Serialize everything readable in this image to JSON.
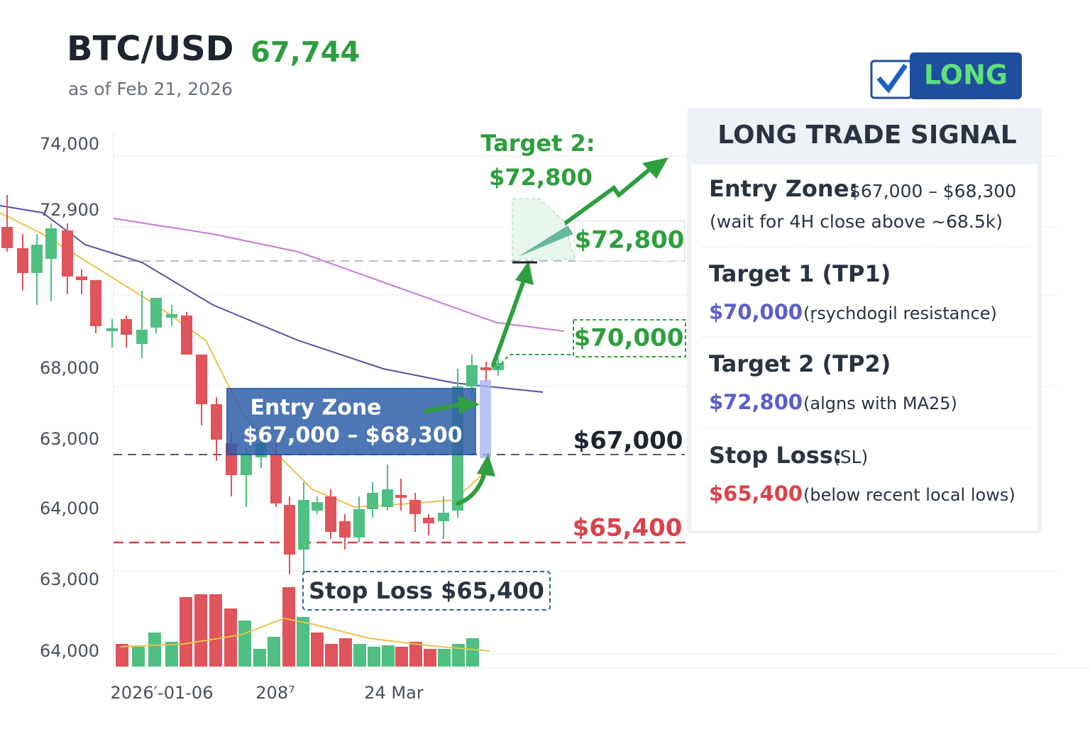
{
  "header": {
    "symbol": "BTC/USD",
    "price": "67,744",
    "as_of": "as of Feb 21, 2026",
    "badge": "LONG"
  },
  "chart": {
    "y_axis_labels": [
      "74,000",
      "72,900",
      "68,000",
      "63,000",
      "64,000",
      "63,000",
      "64,000"
    ],
    "x_axis_labels": [
      "2026′-01-06",
      "208⁷",
      "24 Mar"
    ],
    "annotations": {
      "target2_title": "Target 2:",
      "target2_value": "$72,800",
      "entry_title": "Entry Zone",
      "entry_range": "$67,000 – $68,300",
      "stop_loss": "Stop Loss $65,400"
    },
    "level_labels": [
      "$72,800",
      "$70,000",
      "$67,000",
      "$65,400"
    ]
  },
  "panel": {
    "title": "LONG TRADE SIGNAL",
    "sections": [
      {
        "label": "Entry Zone:",
        "value": "$67,000 – $68,300",
        "note": "(wait for 4H close above ~68.5k)"
      },
      {
        "label": "Target 1 (TP1)",
        "value": "$70,000",
        "note": "(ṛsychdogil resistance)"
      },
      {
        "label": "Target 2 (TP2)",
        "value": "$72,800",
        "note": "(algns with MA25)"
      },
      {
        "label": "Stop Loss:",
        "value": "$65,400",
        "note": "(below recent local lows)",
        "label_note": "(SL)"
      }
    ]
  }
}
